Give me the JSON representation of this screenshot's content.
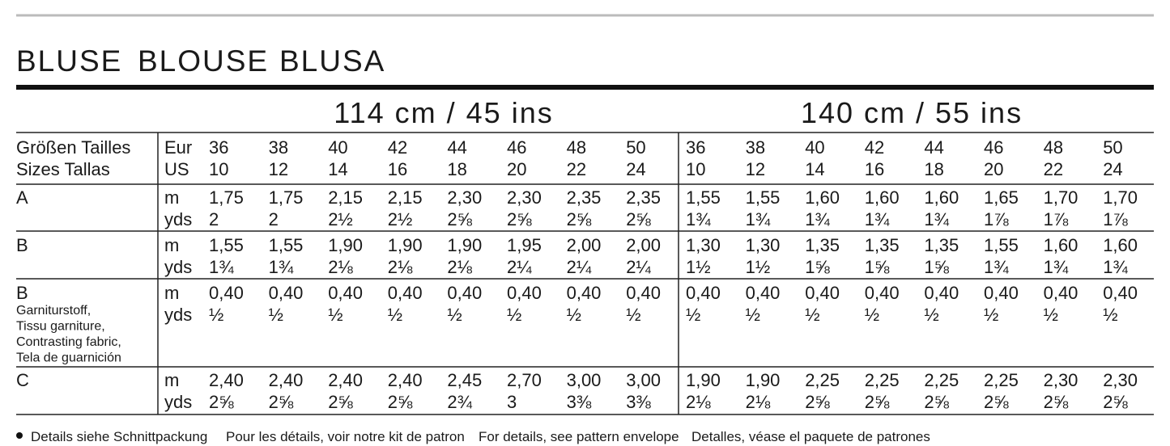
{
  "header": {
    "title": [
      "BLUSE",
      "BLOUSE",
      "BLUSA"
    ]
  },
  "table": {
    "widths": [
      "114 cm / 45 ins",
      "140 cm / 55 ins"
    ],
    "size_label": [
      "Größen Tailles",
      "Sizes Tallas"
    ],
    "size_units": [
      "Eur",
      "US"
    ],
    "eur": [
      36,
      38,
      40,
      42,
      44,
      46,
      48,
      50,
      36,
      38,
      40,
      42,
      44,
      46,
      48,
      50
    ],
    "us": [
      10,
      12,
      14,
      16,
      18,
      20,
      22,
      24,
      10,
      12,
      14,
      16,
      18,
      20,
      22,
      24
    ],
    "rows": [
      {
        "label": "A",
        "units": [
          "m",
          "yds"
        ],
        "m": [
          "1,75",
          "1,75",
          "2,15",
          "2,15",
          "2,30",
          "2,30",
          "2,35",
          "2,35",
          "1,55",
          "1,55",
          "1,60",
          "1,60",
          "1,60",
          "1,65",
          "1,70",
          "1,70"
        ],
        "yds": [
          "2",
          "2",
          "2½",
          "2½",
          "2⅝",
          "2⅝",
          "2⅝",
          "2⅝",
          "1¾",
          "1¾",
          "1¾",
          "1¾",
          "1¾",
          "1⅞",
          "1⅞",
          "1⅞"
        ]
      },
      {
        "label": "B",
        "units": [
          "m",
          "yds"
        ],
        "m": [
          "1,55",
          "1,55",
          "1,90",
          "1,90",
          "1,90",
          "1,95",
          "2,00",
          "2,00",
          "1,30",
          "1,30",
          "1,35",
          "1,35",
          "1,35",
          "1,55",
          "1,60",
          "1,60"
        ],
        "yds": [
          "1¾",
          "1¾",
          "2⅛",
          "2⅛",
          "2⅛",
          "2¼",
          "2¼",
          "2¼",
          "1½",
          "1½",
          "1⅝",
          "1⅝",
          "1⅝",
          "1¾",
          "1¾",
          "1¾"
        ]
      },
      {
        "label": "B",
        "sublabel": [
          "Garniturstoff,",
          "Tissu garniture,",
          "Contrasting fabric,",
          "Tela de guarnición"
        ],
        "units": [
          "m",
          "yds"
        ],
        "m": [
          "0,40",
          "0,40",
          "0,40",
          "0,40",
          "0,40",
          "0,40",
          "0,40",
          "0,40",
          "0,40",
          "0,40",
          "0,40",
          "0,40",
          "0,40",
          "0,40",
          "0,40",
          "0,40"
        ],
        "yds": [
          "½",
          "½",
          "½",
          "½",
          "½",
          "½",
          "½",
          "½",
          "½",
          "½",
          "½",
          "½",
          "½",
          "½",
          "½",
          "½"
        ]
      },
      {
        "label": "C",
        "units": [
          "m",
          "yds"
        ],
        "m": [
          "2,40",
          "2,40",
          "2,40",
          "2,40",
          "2,45",
          "2,70",
          "3,00",
          "3,00",
          "1,90",
          "1,90",
          "2,25",
          "2,25",
          "2,25",
          "2,25",
          "2,30",
          "2,30"
        ],
        "yds": [
          "2⅝",
          "2⅝",
          "2⅝",
          "2⅝",
          "2¾",
          "3",
          "3⅜",
          "3⅜",
          "2⅛",
          "2⅛",
          "2⅝",
          "2⅝",
          "2⅝",
          "2⅝",
          "2⅝",
          "2⅝"
        ]
      }
    ]
  },
  "footer": [
    "Details siehe Schnittpackung",
    "Pour les détails, voir notre kit de patron",
    "For details, see pattern envelope",
    "Detalles, véase el paquete de patrones"
  ]
}
